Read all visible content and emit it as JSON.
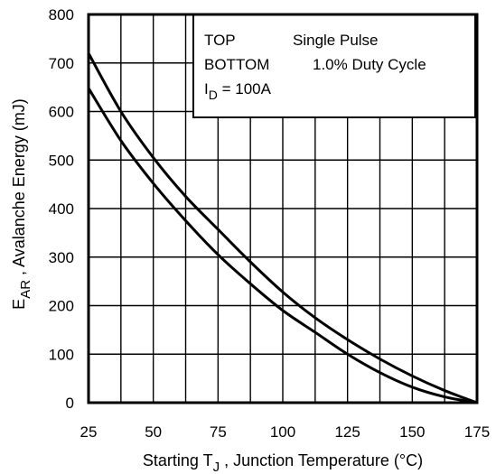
{
  "chart_data": {
    "type": "line",
    "xlabel_prefix": "Starting T",
    "xlabel_sub": "J",
    "xlabel_suffix": " , Junction Temperature (°C)",
    "ylabel_prefix": "E",
    "ylabel_sub": "AR",
    "ylabel_suffix": " , Avalanche Energy (mJ)",
    "xlim": [
      25,
      175
    ],
    "ylim": [
      0,
      800
    ],
    "x_ticks": [
      "25",
      "50",
      "75",
      "100",
      "125",
      "150",
      "175"
    ],
    "y_ticks": [
      "0",
      "100",
      "200",
      "300",
      "400",
      "500",
      "600",
      "700",
      "800"
    ],
    "grid": true,
    "legend": {
      "position": "top-right",
      "rows": [
        {
          "key": "TOP",
          "value": "Single Pulse"
        },
        {
          "key": "BOTTOM",
          "value": "1.0% Duty Cycle"
        }
      ],
      "id_prefix": "I",
      "id_sub": "D",
      "id_suffix": " = 100A"
    },
    "series": [
      {
        "x": [
          25,
          37.5,
          50,
          62.5,
          75,
          87.5,
          100,
          112.5,
          125,
          137.5,
          150,
          162.5,
          175
        ],
        "y": [
          720,
          600,
          505,
          425,
          357,
          290,
          228,
          175,
          130,
          90,
          55,
          25,
          0
        ]
      },
      {
        "x": [
          25,
          37.5,
          50,
          62.5,
          75,
          87.5,
          100,
          112.5,
          125,
          137.5,
          150,
          162.5,
          175
        ],
        "y": [
          648,
          540,
          452,
          375,
          305,
          245,
          190,
          145,
          100,
          62,
          32,
          12,
          0
        ]
      }
    ]
  }
}
